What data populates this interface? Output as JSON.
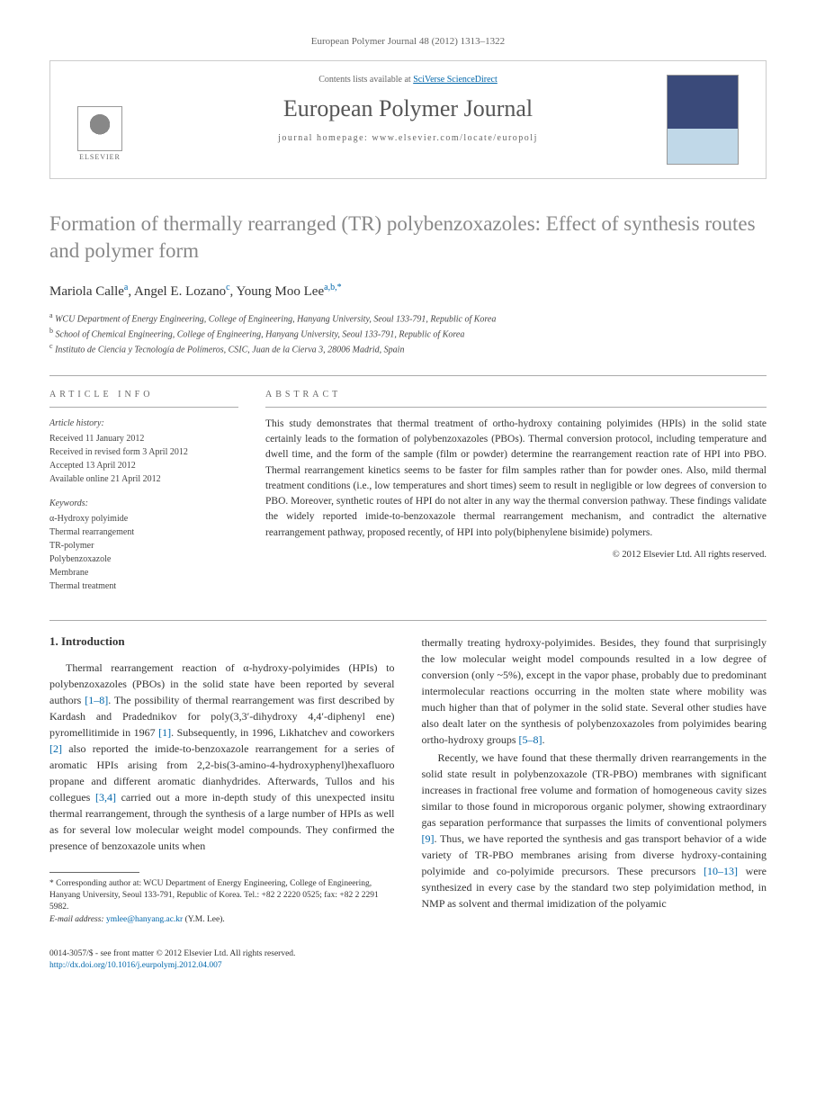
{
  "citation_header": "European Polymer Journal 48 (2012) 1313–1322",
  "header": {
    "contents_text": "Contents lists available at ",
    "contents_link": "SciVerse ScienceDirect",
    "journal_name": "European Polymer Journal",
    "homepage_prefix": "journal homepage: ",
    "homepage_url": "www.elsevier.com/locate/europolj",
    "elsevier_label": "ELSEVIER"
  },
  "title": "Formation of thermally rearranged (TR) polybenzoxazoles: Effect of synthesis routes and polymer form",
  "authors_html": "Mariola Calle<sup>a</sup>, Angel E. Lozano<sup>c</sup>, Young Moo Lee<sup>a,b,*</sup>",
  "affiliations": [
    {
      "sup": "a",
      "text": "WCU Department of Energy Engineering, College of Engineering, Hanyang University, Seoul 133-791, Republic of Korea"
    },
    {
      "sup": "b",
      "text": "School of Chemical Engineering, College of Engineering, Hanyang University, Seoul 133-791, Republic of Korea"
    },
    {
      "sup": "c",
      "text": "Instituto de Ciencia y Tecnología de Polímeros, CSIC, Juan de la Cierva 3, 28006 Madrid, Spain"
    }
  ],
  "article_info": {
    "heading": "ARTICLE INFO",
    "history_label": "Article history:",
    "history": [
      "Received 11 January 2012",
      "Received in revised form 3 April 2012",
      "Accepted 13 April 2012",
      "Available online 21 April 2012"
    ],
    "keywords_label": "Keywords:",
    "keywords": [
      "α-Hydroxy polyimide",
      "Thermal rearrangement",
      "TR-polymer",
      "Polybenzoxazole",
      "Membrane",
      "Thermal treatment"
    ]
  },
  "abstract": {
    "heading": "ABSTRACT",
    "text": "This study demonstrates that thermal treatment of ortho-hydroxy containing polyimides (HPIs) in the solid state certainly leads to the formation of polybenzoxazoles (PBOs). Thermal conversion protocol, including temperature and dwell time, and the form of the sample (film or powder) determine the rearrangement reaction rate of HPI into PBO. Thermal rearrangement kinetics seems to be faster for film samples rather than for powder ones. Also, mild thermal treatment conditions (i.e., low temperatures and short times) seem to result in negligible or low degrees of conversion to PBO. Moreover, synthetic routes of HPI do not alter in any way the thermal conversion pathway. These findings validate the widely reported imide-to-benzoxazole thermal rearrangement mechanism, and contradict the alternative rearrangement pathway, proposed recently, of HPI into poly(biphenylene bisimide) polymers.",
    "copyright": "© 2012 Elsevier Ltd. All rights reserved."
  },
  "body": {
    "section_heading": "1. Introduction",
    "col1_p1": "Thermal rearrangement reaction of α-hydroxy-polyimides (HPIs) to polybenzoxazoles (PBOs) in the solid state have been reported by several authors [1–8]. The possibility of thermal rearrangement was first described by Kardash and Pradednikov for poly(3,3′-dihydroxy 4,4′-diphenyl ene) pyromellitimide in 1967 [1]. Subsequently, in 1996, Likhatchev and coworkers [2] also reported the imide-to-benzoxazole rearrangement for a series of aromatic HPIs arising from 2,2-bis(3-amino-4-hydroxyphenyl)hexafluoro propane and different aromatic dianhydrides. Afterwards, Tullos and his collegues [3,4] carried out a more in-depth study of this unexpected insitu thermal rearrangement, through the synthesis of a large number of HPIs as well as for several low molecular weight model compounds. They confirmed the presence of benzoxazole units when",
    "col2_p1": "thermally treating hydroxy-polyimides. Besides, they found that surprisingly the low molecular weight model compounds resulted in a low degree of conversion (only ~5%), except in the vapor phase, probably due to predominant intermolecular reactions occurring in the molten state where mobility was much higher than that of polymer in the solid state. Several other studies have also dealt later on the synthesis of polybenzoxazoles from polyimides bearing ortho-hydroxy groups [5–8].",
    "col2_p2": "Recently, we have found that these thermally driven rearrangements in the solid state result in polybenzoxazole (TR-PBO) membranes with significant increases in fractional free volume and formation of homogeneous cavity sizes similar to those found in microporous organic polymer, showing extraordinary gas separation performance that surpasses the limits of conventional polymers [9]. Thus, we have reported the synthesis and gas transport behavior of a wide variety of TR-PBO membranes arising from diverse hydroxy-containing polyimide and co-polyimide precursors. These precursors [10–13] were synthesized in every case by the standard two step polyimidation method, in NMP as solvent and thermal imidization of the polyamic",
    "links_col1": [
      "[1–8]",
      "[1]",
      "[2]",
      "[3,4]"
    ],
    "links_col2": [
      "[5–8]",
      "[9]",
      "[10–13]"
    ]
  },
  "footnote": {
    "corr_label": "* Corresponding author at: WCU Department of Energy Engineering, College of Engineering, Hanyang University, Seoul 133-791, Republic of Korea. Tel.: +82 2 2220 0525; fax: +82 2 2291 5982.",
    "email_label": "E-mail address: ",
    "email": "ymlee@hanyang.ac.kr",
    "email_person": " (Y.M. Lee)."
  },
  "bottom": {
    "issn_line": "0014-3057/$ - see front matter © 2012 Elsevier Ltd. All rights reserved.",
    "doi": "http://dx.doi.org/10.1016/j.eurpolymj.2012.04.007"
  },
  "colors": {
    "link": "#0066aa",
    "title_gray": "#888888",
    "text": "#333333",
    "border": "#cccccc"
  }
}
